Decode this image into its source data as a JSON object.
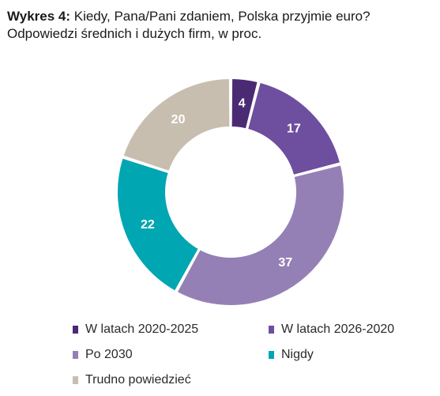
{
  "title": {
    "prefix": "Wykres 4:",
    "line1": " Kiedy, Pana/Pani zdaniem, Polska przyjmie euro?",
    "line2": "Odpowiedzi średnich i dużych firm, w proc."
  },
  "chart_data": {
    "type": "pie",
    "subtype": "donut",
    "title": "Kiedy, Pana/Pani zdaniem, Polska przyjmie euro?",
    "subtitle": "Odpowiedzi średnich i dużych firm, w proc.",
    "series": [
      {
        "name": "W latach 2020-2025",
        "value": 4,
        "label": "4",
        "color": "#4b2a74"
      },
      {
        "name": "W latach 2026-2020",
        "value": 17,
        "label": "17",
        "color": "#6e4e9e"
      },
      {
        "name": "Po 2030",
        "value": 37,
        "label": "37",
        "color": "#9580b5"
      },
      {
        "name": "Nigdy",
        "value": 22,
        "label": "22",
        "color": "#00a6b2"
      },
      {
        "name": "Trudno powiedzieć",
        "value": 20,
        "label": "20",
        "color": "#c8beb0"
      }
    ],
    "legend_position": "bottom"
  }
}
